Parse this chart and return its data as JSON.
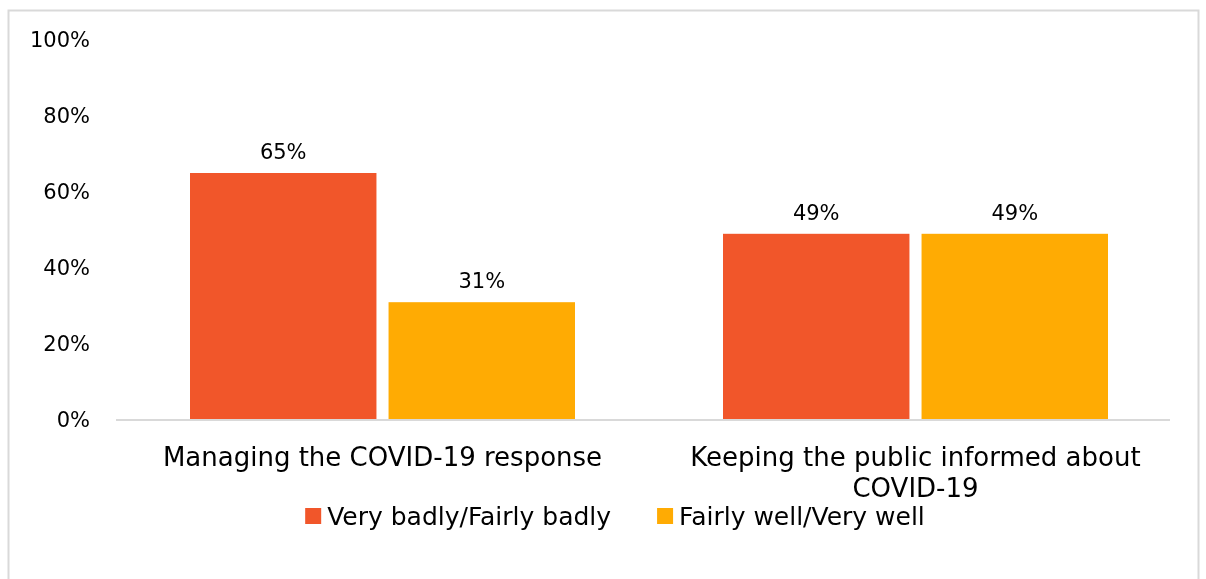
{
  "chart_data": {
    "type": "bar",
    "categories": [
      "Managing the COVID-19 response",
      "Keeping the public informed about COVID-19"
    ],
    "series": [
      {
        "name": "Very badly/Fairly badly",
        "color": "#f1562a",
        "values": [
          65,
          49
        ],
        "value_labels": [
          "65%",
          "49%"
        ]
      },
      {
        "name": "Fairly well/Very well",
        "color": "#ffab03",
        "values": [
          31,
          49
        ],
        "value_labels": [
          "31%",
          "49%"
        ]
      }
    ],
    "ylim": [
      0,
      100
    ],
    "yticks": [
      {
        "value": 0,
        "label": "0%"
      },
      {
        "value": 20,
        "label": "20%"
      },
      {
        "value": 40,
        "label": "40%"
      },
      {
        "value": 60,
        "label": "60%"
      },
      {
        "value": 80,
        "label": "80%"
      },
      {
        "value": 100,
        "label": "100%"
      }
    ],
    "legend": "bottom"
  }
}
